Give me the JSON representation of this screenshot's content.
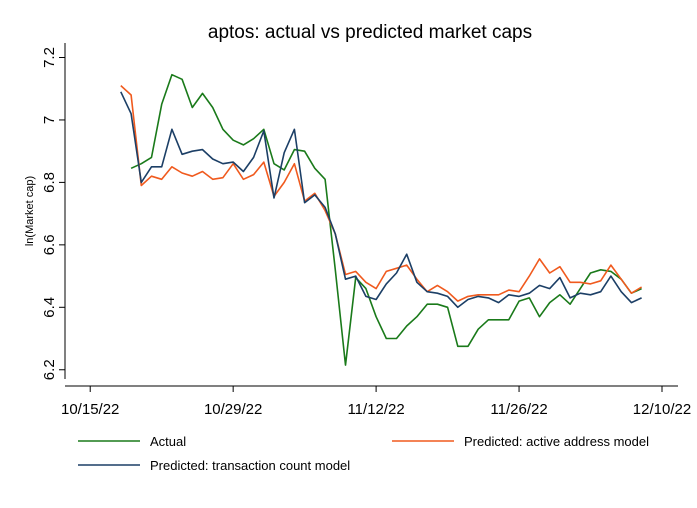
{
  "chart_data": {
    "type": "line",
    "title": "aptos: actual vs predicted market caps",
    "xlabel": "",
    "ylabel": "ln(Market cap)",
    "x_ticks": [
      "10/15/22",
      "10/29/22",
      "11/12/22",
      "11/26/22",
      "12/10/22"
    ],
    "y_ticks": [
      "6.2",
      "6.4",
      "6.6",
      "6.8",
      "7",
      "7.2"
    ],
    "xlim": [
      "2022-10-14",
      "2022-12-10"
    ],
    "ylim": [
      6.18,
      7.24
    ],
    "grid": false,
    "legend_position": "bottom",
    "series": [
      {
        "name": "Actual",
        "color": "#1a7a1a",
        "points": [
          [
            "2022-10-19",
            6.845
          ],
          [
            "2022-10-20",
            6.86
          ],
          [
            "2022-10-21",
            6.88
          ],
          [
            "2022-10-22",
            7.05
          ],
          [
            "2022-10-23",
            7.145
          ],
          [
            "2022-10-24",
            7.13
          ],
          [
            "2022-10-25",
            7.04
          ],
          [
            "2022-10-26",
            7.085
          ],
          [
            "2022-10-27",
            7.04
          ],
          [
            "2022-10-28",
            6.97
          ],
          [
            "2022-10-29",
            6.935
          ],
          [
            "2022-10-30",
            6.92
          ],
          [
            "2022-10-31",
            6.94
          ],
          [
            "2022-11-01",
            6.97
          ],
          [
            "2022-11-02",
            6.86
          ],
          [
            "2022-11-03",
            6.84
          ],
          [
            "2022-11-04",
            6.905
          ],
          [
            "2022-11-05",
            6.9
          ],
          [
            "2022-11-06",
            6.845
          ],
          [
            "2022-11-07",
            6.81
          ],
          [
            "2022-11-08",
            6.52
          ],
          [
            "2022-11-09",
            6.215
          ],
          [
            "2022-11-10",
            6.495
          ],
          [
            "2022-11-11",
            6.46
          ],
          [
            "2022-11-12",
            6.37
          ],
          [
            "2022-11-13",
            6.3
          ],
          [
            "2022-11-14",
            6.3
          ],
          [
            "2022-11-15",
            6.34
          ],
          [
            "2022-11-16",
            6.37
          ],
          [
            "2022-11-17",
            6.41
          ],
          [
            "2022-11-18",
            6.41
          ],
          [
            "2022-11-19",
            6.4
          ],
          [
            "2022-11-20",
            6.275
          ],
          [
            "2022-11-21",
            6.275
          ],
          [
            "2022-11-22",
            6.33
          ],
          [
            "2022-11-23",
            6.36
          ],
          [
            "2022-11-24",
            6.36
          ],
          [
            "2022-11-25",
            6.36
          ],
          [
            "2022-11-26",
            6.42
          ],
          [
            "2022-11-27",
            6.43
          ],
          [
            "2022-11-28",
            6.37
          ],
          [
            "2022-11-29",
            6.415
          ],
          [
            "2022-11-30",
            6.44
          ],
          [
            "2022-12-01",
            6.41
          ],
          [
            "2022-12-02",
            6.46
          ],
          [
            "2022-12-03",
            6.51
          ],
          [
            "2022-12-04",
            6.52
          ],
          [
            "2022-12-05",
            6.515
          ],
          [
            "2022-12-06",
            6.49
          ],
          [
            "2022-12-07",
            6.445
          ],
          [
            "2022-12-08",
            6.46
          ]
        ]
      },
      {
        "name": "Predicted: active address model",
        "color": "#f05a1e",
        "points": [
          [
            "2022-10-18",
            7.11
          ],
          [
            "2022-10-19",
            7.08
          ],
          [
            "2022-10-20",
            6.79
          ],
          [
            "2022-10-21",
            6.82
          ],
          [
            "2022-10-22",
            6.81
          ],
          [
            "2022-10-23",
            6.85
          ],
          [
            "2022-10-24",
            6.83
          ],
          [
            "2022-10-25",
            6.82
          ],
          [
            "2022-10-26",
            6.835
          ],
          [
            "2022-10-27",
            6.81
          ],
          [
            "2022-10-28",
            6.815
          ],
          [
            "2022-10-29",
            6.86
          ],
          [
            "2022-10-30",
            6.81
          ],
          [
            "2022-10-31",
            6.825
          ],
          [
            "2022-11-01",
            6.865
          ],
          [
            "2022-11-02",
            6.755
          ],
          [
            "2022-11-03",
            6.8
          ],
          [
            "2022-11-04",
            6.86
          ],
          [
            "2022-11-05",
            6.74
          ],
          [
            "2022-11-06",
            6.765
          ],
          [
            "2022-11-07",
            6.71
          ],
          [
            "2022-11-08",
            6.635
          ],
          [
            "2022-11-09",
            6.505
          ],
          [
            "2022-11-10",
            6.515
          ],
          [
            "2022-11-11",
            6.48
          ],
          [
            "2022-11-12",
            6.46
          ],
          [
            "2022-11-13",
            6.515
          ],
          [
            "2022-11-14",
            6.525
          ],
          [
            "2022-11-15",
            6.535
          ],
          [
            "2022-11-16",
            6.49
          ],
          [
            "2022-11-17",
            6.45
          ],
          [
            "2022-11-18",
            6.47
          ],
          [
            "2022-11-19",
            6.45
          ],
          [
            "2022-11-20",
            6.42
          ],
          [
            "2022-11-21",
            6.435
          ],
          [
            "2022-11-22",
            6.44
          ],
          [
            "2022-11-23",
            6.44
          ],
          [
            "2022-11-24",
            6.44
          ],
          [
            "2022-11-25",
            6.455
          ],
          [
            "2022-11-26",
            6.45
          ],
          [
            "2022-11-27",
            6.5
          ],
          [
            "2022-11-28",
            6.555
          ],
          [
            "2022-11-29",
            6.51
          ],
          [
            "2022-11-30",
            6.53
          ],
          [
            "2022-12-01",
            6.48
          ],
          [
            "2022-12-02",
            6.48
          ],
          [
            "2022-12-03",
            6.475
          ],
          [
            "2022-12-04",
            6.485
          ],
          [
            "2022-12-05",
            6.535
          ],
          [
            "2022-12-06",
            6.49
          ],
          [
            "2022-12-07",
            6.445
          ],
          [
            "2022-12-08",
            6.465
          ]
        ]
      },
      {
        "name": "Predicted: transaction count model",
        "color": "#1c3f66",
        "points": [
          [
            "2022-10-18",
            7.09
          ],
          [
            "2022-10-19",
            7.02
          ],
          [
            "2022-10-20",
            6.8
          ],
          [
            "2022-10-21",
            6.85
          ],
          [
            "2022-10-22",
            6.85
          ],
          [
            "2022-10-23",
            6.97
          ],
          [
            "2022-10-24",
            6.89
          ],
          [
            "2022-10-25",
            6.9
          ],
          [
            "2022-10-26",
            6.905
          ],
          [
            "2022-10-27",
            6.875
          ],
          [
            "2022-10-28",
            6.86
          ],
          [
            "2022-10-29",
            6.865
          ],
          [
            "2022-10-30",
            6.835
          ],
          [
            "2022-10-31",
            6.88
          ],
          [
            "2022-11-01",
            6.965
          ],
          [
            "2022-11-02",
            6.75
          ],
          [
            "2022-11-03",
            6.895
          ],
          [
            "2022-11-04",
            6.97
          ],
          [
            "2022-11-05",
            6.735
          ],
          [
            "2022-11-06",
            6.76
          ],
          [
            "2022-11-07",
            6.72
          ],
          [
            "2022-11-08",
            6.635
          ],
          [
            "2022-11-09",
            6.49
          ],
          [
            "2022-11-10",
            6.5
          ],
          [
            "2022-11-11",
            6.435
          ],
          [
            "2022-11-12",
            6.425
          ],
          [
            "2022-11-13",
            6.475
          ],
          [
            "2022-11-14",
            6.51
          ],
          [
            "2022-11-15",
            6.57
          ],
          [
            "2022-11-16",
            6.48
          ],
          [
            "2022-11-17",
            6.45
          ],
          [
            "2022-11-18",
            6.445
          ],
          [
            "2022-11-19",
            6.435
          ],
          [
            "2022-11-20",
            6.4
          ],
          [
            "2022-11-21",
            6.425
          ],
          [
            "2022-11-22",
            6.435
          ],
          [
            "2022-11-23",
            6.43
          ],
          [
            "2022-11-24",
            6.415
          ],
          [
            "2022-11-25",
            6.44
          ],
          [
            "2022-11-26",
            6.435
          ],
          [
            "2022-11-27",
            6.445
          ],
          [
            "2022-11-28",
            6.47
          ],
          [
            "2022-11-29",
            6.46
          ],
          [
            "2022-11-30",
            6.495
          ],
          [
            "2022-12-01",
            6.43
          ],
          [
            "2022-12-02",
            6.445
          ],
          [
            "2022-12-03",
            6.44
          ],
          [
            "2022-12-04",
            6.45
          ],
          [
            "2022-12-05",
            6.5
          ],
          [
            "2022-12-06",
            6.45
          ],
          [
            "2022-12-07",
            6.415
          ],
          [
            "2022-12-08",
            6.43
          ]
        ]
      }
    ]
  }
}
